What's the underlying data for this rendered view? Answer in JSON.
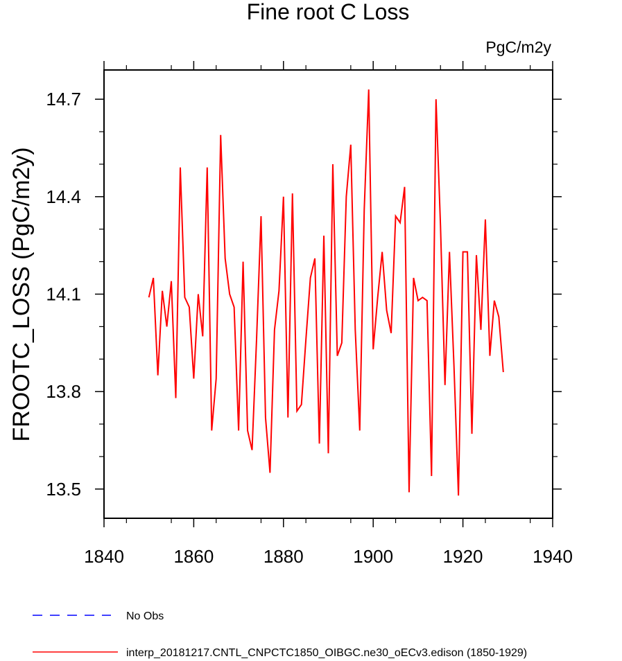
{
  "chart_data": {
    "type": "line",
    "title": "Fine root C Loss",
    "units": "PgC/m2y",
    "xlabel": "",
    "ylabel": "FROOTC_LOSS  (PgC/m2y)",
    "xlim": [
      1840,
      1940
    ],
    "ylim": [
      13.41,
      14.79
    ],
    "x_ticks": [
      1840,
      1860,
      1880,
      1900,
      1920,
      1940
    ],
    "y_ticks": [
      13.5,
      13.8,
      14.1,
      14.4,
      14.7
    ],
    "x_tick_labels": [
      "1840",
      "1860",
      "1880",
      "1900",
      "1920",
      "1940"
    ],
    "y_tick_labels": [
      "13.5",
      "13.8",
      "14.1",
      "14.4",
      "14.7"
    ],
    "grid": false,
    "series": [
      {
        "name": "interp_20181217.CNTL_CNPCTC1850_OIBGC.ne30_oECv3.edison (1850-1929)",
        "color": "#ff0000",
        "x": [
          1850,
          1851,
          1852,
          1853,
          1854,
          1855,
          1856,
          1857,
          1858,
          1859,
          1860,
          1861,
          1862,
          1863,
          1864,
          1865,
          1866,
          1867,
          1868,
          1869,
          1870,
          1871,
          1872,
          1873,
          1874,
          1875,
          1876,
          1877,
          1878,
          1879,
          1880,
          1881,
          1882,
          1883,
          1884,
          1885,
          1886,
          1887,
          1888,
          1889,
          1890,
          1891,
          1892,
          1893,
          1894,
          1895,
          1896,
          1897,
          1898,
          1899,
          1900,
          1901,
          1902,
          1903,
          1904,
          1905,
          1906,
          1907,
          1908,
          1909,
          1910,
          1911,
          1912,
          1913,
          1914,
          1915,
          1916,
          1917,
          1918,
          1919,
          1920,
          1921,
          1922,
          1923,
          1924,
          1925,
          1926,
          1927,
          1928,
          1929
        ],
        "values": [
          14.09,
          14.15,
          13.85,
          14.11,
          14.0,
          14.14,
          13.78,
          14.49,
          14.09,
          14.06,
          13.84,
          14.1,
          13.97,
          14.49,
          13.68,
          13.84,
          14.59,
          14.21,
          14.1,
          14.06,
          13.68,
          14.2,
          13.68,
          13.62,
          13.96,
          14.34,
          13.72,
          13.55,
          13.99,
          14.11,
          14.4,
          13.72,
          14.41,
          13.74,
          13.76,
          13.96,
          14.15,
          14.21,
          13.64,
          14.28,
          13.61,
          14.5,
          13.91,
          13.95,
          14.4,
          14.56,
          13.99,
          13.68,
          14.36,
          14.73,
          13.93,
          14.09,
          14.23,
          14.05,
          13.98,
          14.34,
          14.32,
          14.43,
          13.49,
          14.15,
          14.08,
          14.09,
          14.08,
          13.54,
          14.7,
          14.31,
          13.82,
          14.23,
          13.88,
          13.48,
          14.23,
          14.23,
          13.67,
          14.22,
          13.99,
          14.33,
          13.91,
          14.08,
          14.03,
          13.86
        ]
      },
      {
        "name": "No Obs",
        "color": "#0000ff",
        "style": "dashed",
        "values": []
      }
    ],
    "legend": [
      {
        "label": "No Obs",
        "color": "#0000ff",
        "style": "dashed"
      },
      {
        "label": "interp_20181217.CNTL_CNPCTC1850_OIBGC.ne30_oECv3.edison (1850-1929)",
        "color": "#ff0000",
        "style": "solid"
      }
    ],
    "legend_position": "bottom"
  }
}
